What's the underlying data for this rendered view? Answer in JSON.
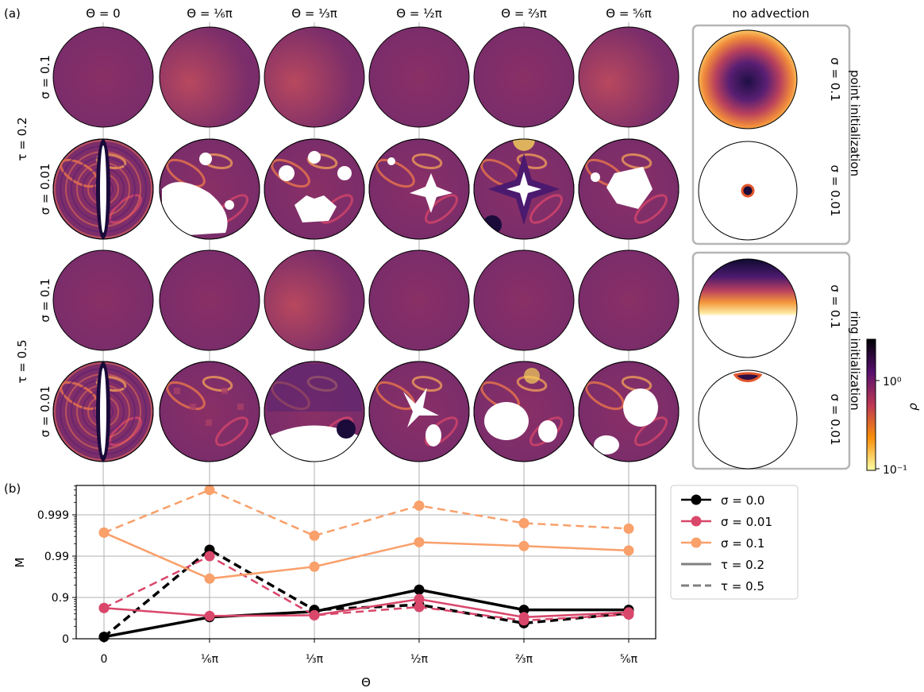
{
  "panel_a": {
    "label": "(a)",
    "column_headers": [
      "Θ = 0",
      "Θ = ⅙π",
      "Θ = ⅓π",
      "Θ = ½π",
      "Θ = ⅔π",
      "Θ = ⅚π"
    ],
    "tau_labels": [
      "τ = 0.2",
      "τ = 0.5"
    ],
    "sigma_row_labels": [
      "σ = 0.1",
      "σ = 0.01",
      "σ = 0.1",
      "σ = 0.01"
    ],
    "no_advection_title": "no advection",
    "inset_labels": [
      "point initialization",
      "ring initialization"
    ],
    "inset_sigma_labels": [
      "σ = 0.1",
      "σ = 0.01",
      "σ = 0.1",
      "σ = 0.01"
    ],
    "colorbar": {
      "label": "ρ",
      "ticks": [
        "10⁰",
        "10⁻¹"
      ],
      "scale": "log"
    }
  },
  "chart_data": {
    "type": "line",
    "panel_label": "(b)",
    "xlabel": "Θ",
    "ylabel": "M",
    "x_tick_labels": [
      "0",
      "⅙π",
      "⅓π",
      "½π",
      "⅔π",
      "⅚π"
    ],
    "y_tick_labels": [
      "0",
      "0.9",
      "0.99",
      "0.999"
    ],
    "yscale": "log(1 - M)",
    "grid": true,
    "legend_position": "outside-right",
    "legend": [
      {
        "label": "σ = 0.0",
        "color": "#000000",
        "kind": "marker"
      },
      {
        "label": "σ = 0.01",
        "color": "#d9476b",
        "kind": "marker"
      },
      {
        "label": "σ = 0.1",
        "color": "#f9a06b",
        "kind": "marker"
      },
      {
        "label": "τ = 0.2",
        "color": "#808080",
        "kind": "solid"
      },
      {
        "label": "τ = 0.5",
        "color": "#808080",
        "kind": "dashed"
      }
    ],
    "series": [
      {
        "sigma": "0.0",
        "tau": "0.2",
        "color": "#000000",
        "dash": false,
        "values": [
          0.1,
          0.7,
          0.78,
          0.935,
          0.8,
          0.8
        ]
      },
      {
        "sigma": "0.0",
        "tau": "0.5",
        "color": "#000000",
        "dash": true,
        "values": [
          0.1,
          0.993,
          0.8,
          0.85,
          0.58,
          0.76
        ]
      },
      {
        "sigma": "0.01",
        "tau": "0.2",
        "color": "#d9476b",
        "dash": false,
        "values": [
          0.82,
          0.72,
          0.73,
          0.89,
          0.7,
          0.77
        ]
      },
      {
        "sigma": "0.01",
        "tau": "0.5",
        "color": "#d9476b",
        "dash": true,
        "values": [
          0.82,
          0.99,
          0.73,
          0.83,
          0.64,
          0.74
        ]
      },
      {
        "sigma": "0.1",
        "tau": "0.2",
        "color": "#f9a06b",
        "dash": false,
        "values": [
          0.9973,
          0.965,
          0.982,
          0.9954,
          0.9943,
          0.9927
        ]
      },
      {
        "sigma": "0.1",
        "tau": "0.5",
        "color": "#f9a06b",
        "dash": true,
        "values": [
          0.9973,
          0.99975,
          0.9968,
          0.9994,
          0.99841,
          0.99784
        ]
      }
    ]
  }
}
